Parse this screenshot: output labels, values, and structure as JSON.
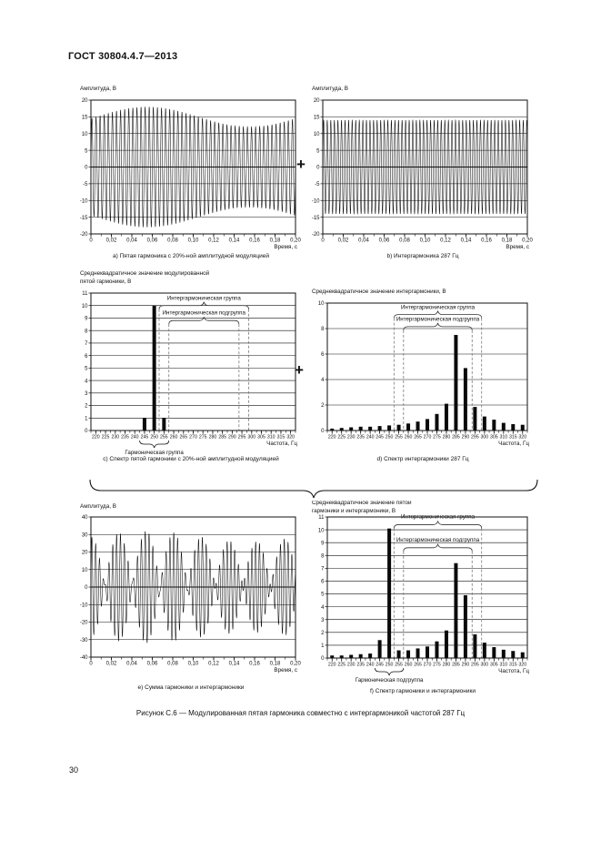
{
  "page": {
    "header": "ГОСТ 30804.4.7—2013",
    "page_number": "30",
    "figure_caption": "Рисунок С.6 — Модулированная пятая гармоника совместно с интергармоникой частотой 287 Гц",
    "plus_sign": "+"
  },
  "chart_data": [
    {
      "id": "a",
      "type": "line",
      "title": "Амплитуда, В",
      "caption": "а) Пятая гармоника с 20%-ной амплитудной модуляцией",
      "xlabel": "Время, с",
      "xlim": [
        0,
        0.2
      ],
      "ylim": [
        -20,
        20
      ],
      "xticks": [
        0,
        0.02,
        0.04,
        0.06,
        0.08,
        0.1,
        0.12,
        0.14,
        0.16,
        0.18,
        0.2
      ],
      "xtick_labels": [
        "0",
        "0,02",
        "0,04",
        "0,06",
        "0,08",
        "0,10",
        "0,12",
        "0,14",
        "0,16",
        "0,18",
        "0,20"
      ],
      "minor_xtick": 0.01,
      "yticks": [
        -20,
        -15,
        -10,
        -5,
        0,
        5,
        10,
        15,
        20
      ],
      "ytick_labels": [
        "-20",
        "-15",
        "-10",
        "-5",
        "0",
        "5",
        "10",
        "15",
        "20"
      ],
      "grid": true,
      "signal": [
        {
          "freq": 250,
          "amp": 15,
          "mod_freq": 5,
          "mod_depth": 0.2,
          "mod_phase": -0.16
        }
      ]
    },
    {
      "id": "b",
      "type": "line",
      "title": "Амплитуда, В",
      "caption": "b) Интергармоника 287 Гц",
      "xlabel": "Время, с",
      "xlim": [
        0,
        0.2
      ],
      "ylim": [
        -20,
        20
      ],
      "xticks": [
        0,
        0.02,
        0.04,
        0.06,
        0.08,
        0.1,
        0.12,
        0.14,
        0.16,
        0.18,
        0.2
      ],
      "xtick_labels": [
        "0",
        "0,02",
        "0,04",
        "0,06",
        "0,08",
        "0,10",
        "0,12",
        "0,14",
        "0,16",
        "0,18",
        "0,20"
      ],
      "minor_xtick": 0.01,
      "yticks": [
        -20,
        -15,
        -10,
        -5,
        0,
        5,
        10,
        15,
        20
      ],
      "ytick_labels": [
        "-20",
        "-15",
        "-10",
        "-5",
        "0",
        "5",
        "10",
        "15",
        "20"
      ],
      "grid": true,
      "signal": [
        {
          "freq": 287,
          "amp": 14,
          "mod_depth": 0
        }
      ]
    },
    {
      "id": "c",
      "type": "bar",
      "title": "Среднеквадратичное значение модулированной\nпятой гармоники, В",
      "caption": "с) Спектр пятой гармоники с 20%-ной амплитудной модуляцией",
      "xlabel": "Частота, Гц",
      "xlim": [
        217.5,
        322.5
      ],
      "ylim": [
        0,
        11
      ],
      "categories": [
        220,
        225,
        230,
        235,
        240,
        245,
        250,
        255,
        260,
        265,
        270,
        275,
        280,
        285,
        290,
        295,
        300,
        305,
        310,
        315,
        320
      ],
      "xtick_labels": [
        "220",
        "225",
        "230",
        "235",
        "240",
        "245",
        "250",
        "255",
        "260",
        "265",
        "270",
        "275",
        "280",
        "285",
        "290",
        "295",
        "300",
        "305",
        "310",
        "315",
        "320"
      ],
      "minor_xtick": 2.5,
      "values": [
        0,
        0,
        0,
        0,
        0,
        1,
        10,
        1,
        0,
        0,
        0,
        0,
        0,
        0,
        0,
        0,
        0,
        0,
        0,
        0,
        0
      ],
      "yticks": [
        0,
        1,
        2,
        3,
        4,
        5,
        6,
        7,
        8,
        9,
        10,
        11
      ],
      "ytick_labels": [
        "0",
        "1",
        "2",
        "3",
        "4",
        "5",
        "6",
        "7",
        "8",
        "9",
        "10",
        "11"
      ],
      "grid": true,
      "brackets": [
        {
          "label": "Интергармоническая группа",
          "x1": 252.5,
          "x2": 298.5,
          "label_y": 10.45,
          "brace_y": 10.0
        },
        {
          "label": "Интергармоническая подгруппа",
          "x1": 257.5,
          "x2": 293.5,
          "label_y": 9.3,
          "brace_y": 8.8
        }
      ],
      "under_bracket": {
        "label": "Гармоническая группа",
        "x1": 242.5,
        "x2": 257.5
      }
    },
    {
      "id": "d",
      "type": "bar",
      "title": "Среднеквадратичное значение интергармоники, В",
      "caption": "d) Спектр интергармоники 287 Гц",
      "xlabel": "Частота, Гц",
      "xlim": [
        217.5,
        322.5
      ],
      "ylim": [
        0,
        10
      ],
      "categories": [
        220,
        225,
        230,
        235,
        240,
        245,
        250,
        255,
        260,
        265,
        270,
        275,
        280,
        285,
        290,
        295,
        300,
        305,
        310,
        315,
        320
      ],
      "xtick_labels": [
        "220",
        "225",
        "230",
        "235",
        "240",
        "245",
        "250",
        "255",
        "260",
        "265",
        "270",
        "275",
        "280",
        "285",
        "290",
        "295",
        "300",
        "305",
        "310",
        "315",
        "320"
      ],
      "minor_xtick": 2.5,
      "values": [
        0.15,
        0.2,
        0.25,
        0.3,
        0.3,
        0.35,
        0.4,
        0.45,
        0.55,
        0.7,
        0.9,
        1.3,
        2.1,
        7.5,
        4.9,
        1.85,
        1.1,
        0.85,
        0.6,
        0.5,
        0.45
      ],
      "yticks": [
        0,
        2,
        4,
        6,
        8,
        10
      ],
      "ytick_labels": [
        "0",
        "2",
        "4",
        "6",
        "8",
        "10"
      ],
      "grid": true,
      "brackets": [
        {
          "label": "Интергармоническая группа",
          "x1": 252.5,
          "x2": 298.5,
          "label_y": 9.55,
          "brace_y": 9.1
        },
        {
          "label": "Интергармоническая подгруппа",
          "x1": 257.5,
          "x2": 293.5,
          "label_y": 8.6,
          "brace_y": 8.15
        }
      ]
    },
    {
      "id": "e",
      "type": "line",
      "title": "Амплитуда, В",
      "caption": "е) Сумма гармоники и интергармоники",
      "xlabel": "Время, с",
      "xlim": [
        0,
        0.2
      ],
      "ylim": [
        -40,
        40
      ],
      "xticks": [
        0,
        0.02,
        0.04,
        0.06,
        0.08,
        0.1,
        0.12,
        0.14,
        0.16,
        0.18,
        0.2
      ],
      "xtick_labels": [
        "0",
        "0,02",
        "0,04",
        "0,06",
        "0,08",
        "0,10",
        "0,12",
        "0,14",
        "0,16",
        "0,18",
        "0,20"
      ],
      "minor_xtick": 0.01,
      "yticks": [
        -40,
        -30,
        -20,
        -10,
        0,
        10,
        20,
        30,
        40
      ],
      "ytick_labels": [
        "-40",
        "-30",
        "-20",
        "-10",
        "0",
        "10",
        "20",
        "30",
        "40"
      ],
      "grid": true,
      "signal": [
        {
          "freq": 250,
          "amp": 15,
          "mod_freq": 5,
          "mod_depth": 0.2,
          "mod_phase": -0.16
        },
        {
          "freq": 287,
          "amp": 14,
          "mod_depth": 0
        }
      ]
    },
    {
      "id": "f",
      "type": "bar",
      "title": "Среднеквадратичное значение пятой\nгармоники и интергармоники, В",
      "caption": "f) Спектр гармоники и интергармоники",
      "xlabel": "Частота, Гц",
      "xlim": [
        217.5,
        322.5
      ],
      "ylim": [
        0,
        11
      ],
      "categories": [
        220,
        225,
        230,
        235,
        240,
        245,
        250,
        255,
        260,
        265,
        270,
        275,
        280,
        285,
        290,
        295,
        300,
        305,
        310,
        315,
        320
      ],
      "xtick_labels": [
        "220",
        "225",
        "230",
        "235",
        "240",
        "245",
        "250",
        "255",
        "260",
        "265",
        "270",
        "275",
        "280",
        "285",
        "290",
        "295",
        "300",
        "305",
        "310",
        "315",
        "320"
      ],
      "minor_xtick": 2.5,
      "values": [
        0.2,
        0.2,
        0.25,
        0.3,
        0.35,
        1.4,
        10.1,
        0.6,
        0.6,
        0.75,
        0.9,
        1.3,
        2.15,
        7.4,
        4.9,
        1.85,
        1.2,
        0.85,
        0.65,
        0.55,
        0.45
      ],
      "yticks": [
        0,
        1,
        2,
        3,
        4,
        5,
        6,
        7,
        8,
        9,
        10,
        11
      ],
      "ytick_labels": [
        "0",
        "1",
        "2",
        "3",
        "4",
        "5",
        "6",
        "7",
        "8",
        "9",
        "10",
        "11"
      ],
      "grid": true,
      "brackets": [
        {
          "label": "Интергармоническая группа",
          "x1": 252.5,
          "x2": 298.5,
          "label_y": 10.9,
          "brace_y": 10.4
        },
        {
          "label": "Интергармоническая подгруппа",
          "x1": 257.5,
          "x2": 293.5,
          "label_y": 9.1,
          "brace_y": 8.6
        }
      ],
      "under_bracket": {
        "label": "Гармоническая подгруппа",
        "x1": 242.5,
        "x2": 257.5
      }
    }
  ]
}
